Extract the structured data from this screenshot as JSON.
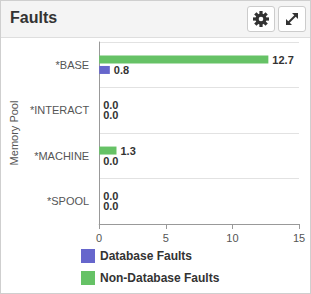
{
  "chart_data": {
    "type": "bar",
    "orientation": "horizontal",
    "title": "Faults",
    "ylabel": "Memory Pool",
    "categories": [
      "*BASE",
      "*INTERACT",
      "*MACHINE",
      "*SPOOL"
    ],
    "series": [
      {
        "name": "Database Faults",
        "color": "#6666cc",
        "values": [
          0.8,
          0,
          0,
          0
        ],
        "value_labels": [
          "0.8",
          "0.0",
          "0.0",
          "0.0"
        ]
      },
      {
        "name": "Non-Database Faults",
        "color": "#66c266",
        "values": [
          12.7,
          0,
          1.3,
          0
        ],
        "value_labels": [
          "12.7",
          "0.0",
          "1.3",
          "0.0"
        ]
      }
    ],
    "xlim": [
      0,
      15
    ],
    "xticks": [
      0,
      5,
      10,
      15
    ],
    "grid": true,
    "data_labels": true,
    "legend": "bottom-left"
  }
}
